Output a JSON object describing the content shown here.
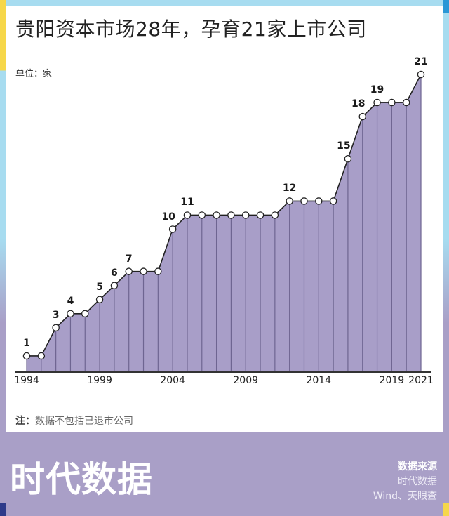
{
  "header": {
    "title": "贵阳资本市场28年，孕育21家上市公司",
    "unit": "单位：家"
  },
  "colors": {
    "fill": "#a89ec8",
    "divider": "#6e6591",
    "line": "#222222",
    "marker_fill": "#ffffff",
    "frame_blue": "#a7dcf0",
    "frame_yellow": "#f6d74a",
    "footer_bg": "#a99fc7"
  },
  "chart_data": {
    "type": "area",
    "title": "贵阳资本市场28年，孕育21家上市公司",
    "xlabel": "",
    "ylabel": "单位：家",
    "x": [
      1994,
      1995,
      1996,
      1997,
      1998,
      1999,
      2000,
      2001,
      2002,
      2003,
      2004,
      2005,
      2006,
      2007,
      2008,
      2009,
      2010,
      2011,
      2012,
      2013,
      2014,
      2015,
      2016,
      2017,
      2018,
      2019,
      2020,
      2021
    ],
    "values": [
      1,
      1,
      3,
      4,
      4,
      5,
      6,
      7,
      7,
      7,
      10,
      11,
      11,
      11,
      11,
      11,
      11,
      11,
      12,
      12,
      12,
      12,
      15,
      18,
      19,
      19,
      19,
      21
    ],
    "xticks": [
      "1994",
      "1999",
      "2004",
      "2009",
      "2014",
      "2019",
      "2021"
    ],
    "data_labels": [
      {
        "year": 1994,
        "label": "1"
      },
      {
        "year": 1996,
        "label": "3"
      },
      {
        "year": 1997,
        "label": "4"
      },
      {
        "year": 1999,
        "label": "5"
      },
      {
        "year": 2000,
        "label": "6"
      },
      {
        "year": 2001,
        "label": "7"
      },
      {
        "year": 2004,
        "label": "10"
      },
      {
        "year": 2005,
        "label": "11"
      },
      {
        "year": 2012,
        "label": "12"
      },
      {
        "year": 2016,
        "label": "15"
      },
      {
        "year": 2017,
        "label": "18"
      },
      {
        "year": 2018,
        "label": "19"
      },
      {
        "year": 2021,
        "label": "21"
      }
    ],
    "ylim": [
      0,
      21
    ],
    "grid": false,
    "legend": null
  },
  "footer": {
    "note_key": "注：",
    "note_text": "数据不包括已退市公司",
    "logo": "时代数据",
    "source_title": "数据来源",
    "source_lines": [
      "时代数据",
      "Wind、天眼查"
    ]
  }
}
